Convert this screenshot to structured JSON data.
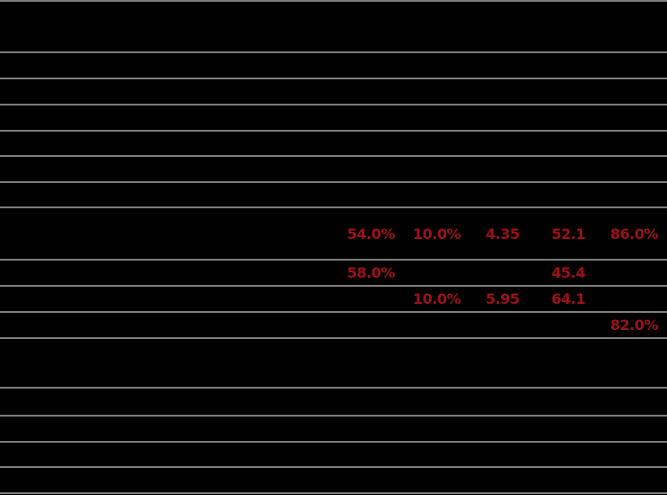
{
  "meta": {
    "background_color": "#000000",
    "separator_color": "#7d7d7d",
    "highlight_value_color": "#9d1118"
  },
  "table": {
    "rows": [
      {
        "label": "",
        "cells": [
          "",
          "",
          "",
          "",
          ""
        ]
      },
      {
        "label": "",
        "cells": [
          "",
          "",
          "",
          "",
          ""
        ]
      },
      {
        "label": "",
        "cells": [
          "",
          "",
          "",
          "",
          ""
        ]
      },
      {
        "label": "",
        "cells": [
          "",
          "",
          "",
          "",
          ""
        ]
      },
      {
        "label": "",
        "cells": [
          "",
          "",
          "",
          "",
          ""
        ]
      },
      {
        "label": "",
        "cells": [
          "",
          "",
          "",
          "",
          ""
        ]
      },
      {
        "label": "",
        "cells": [
          "",
          "",
          "",
          "",
          ""
        ]
      },
      {
        "label": "",
        "cells": [
          "54.0%",
          "10.0%",
          "4.35",
          "52.1",
          "86.0%"
        ]
      },
      {
        "label": "",
        "cells": [
          "58.0%",
          "",
          "",
          "45.4",
          ""
        ]
      },
      {
        "label": "",
        "cells": [
          "",
          "10.0%",
          "5.95",
          "64.1",
          ""
        ]
      },
      {
        "label": "",
        "cells": [
          "",
          "",
          "",
          "",
          "82.0%"
        ]
      },
      {
        "label": "",
        "cells": [
          "",
          "",
          "",
          "",
          ""
        ]
      },
      {
        "label": "",
        "cells": [
          "",
          "",
          "",
          "",
          ""
        ]
      },
      {
        "label": "",
        "cells": [
          "",
          "",
          "",
          "",
          ""
        ]
      },
      {
        "label": "",
        "cells": [
          "",
          "",
          "",
          "",
          ""
        ]
      },
      {
        "label": "",
        "cells": [
          "",
          "",
          "",
          "",
          ""
        ]
      }
    ]
  }
}
